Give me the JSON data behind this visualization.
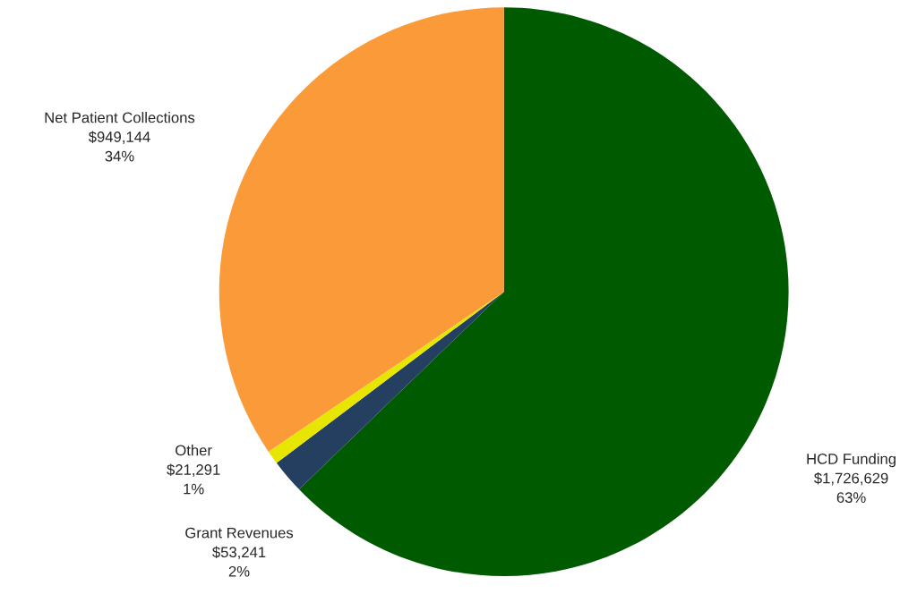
{
  "chart_data": {
    "type": "pie",
    "categories": [
      "HCD Funding",
      "Grant Revenues",
      "Other",
      "Net Patient Collections"
    ],
    "values": [
      1726629,
      53241,
      21291,
      949144
    ],
    "value_labels": [
      "$1,726,629\n63%",
      "$53,241\n2%",
      "$21,291\n1%",
      "$949,144\n34%"
    ],
    "colors": [
      "#005a00",
      "#243f60",
      "#e6e600",
      "#fb9a38"
    ]
  }
}
